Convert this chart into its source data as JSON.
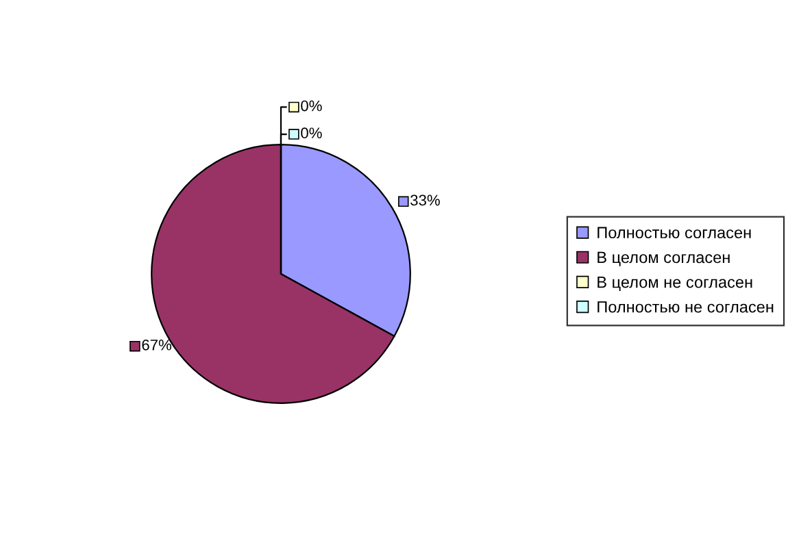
{
  "chart_data": {
    "type": "pie",
    "categories": [
      "Полностью согласен",
      "В целом согласен",
      "В целом не согласен",
      "Полностью не согласен"
    ],
    "values": [
      33,
      67,
      0,
      0
    ],
    "colors": [
      "#9999ff",
      "#993366",
      "#ffffcc",
      "#ccffff"
    ],
    "value_labels": [
      "33%",
      "67%",
      "0%",
      "0%"
    ],
    "legend": "right"
  }
}
